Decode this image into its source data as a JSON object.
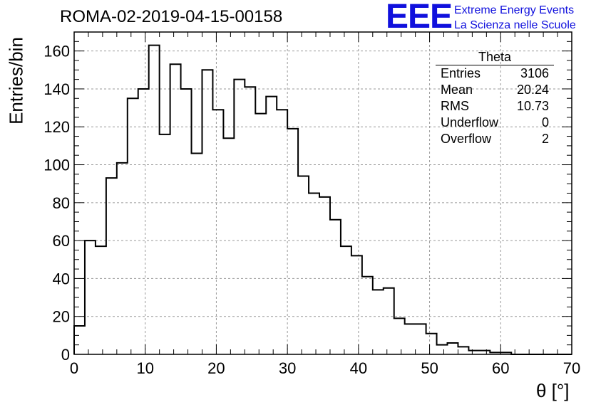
{
  "title": "ROMA-02-2019-04-15-00158",
  "logo": {
    "mark": "EEE",
    "line1": "Extreme Energy Events",
    "line2": "La Scienza nelle Scuole"
  },
  "stats": {
    "title": "Theta",
    "rows": [
      {
        "label": "Entries",
        "value": "3106"
      },
      {
        "label": "Mean",
        "value": "20.24"
      },
      {
        "label": "RMS",
        "value": "10.73"
      },
      {
        "label": "Underflow",
        "value": "0"
      },
      {
        "label": "Overflow",
        "value": "2"
      }
    ]
  },
  "chart_data": {
    "type": "bar",
    "style": "step-histogram",
    "title": "ROMA-02-2019-04-15-00158",
    "xlabel": "θ [°]",
    "ylabel": "Entries/bin",
    "xlim": [
      0,
      70
    ],
    "ylim": [
      0,
      170
    ],
    "grid": true,
    "bin_width": 1.5,
    "x_start": 0,
    "values": [
      15,
      60,
      57,
      93,
      101,
      135,
      140,
      163,
      116,
      153,
      140,
      106,
      150,
      129,
      114,
      145,
      141,
      127,
      136,
      129,
      119,
      94,
      85,
      83,
      71,
      57,
      52,
      41,
      34,
      35,
      19,
      16,
      16,
      11,
      5,
      6,
      4,
      2,
      2,
      1,
      1,
      0,
      0,
      0,
      0,
      0,
      0
    ],
    "x_ticks": [
      0,
      10,
      20,
      30,
      40,
      50,
      60,
      70
    ],
    "y_ticks": [
      0,
      20,
      40,
      60,
      80,
      100,
      120,
      140,
      160
    ],
    "line_color": "#000000",
    "grid_color": "#999999"
  }
}
